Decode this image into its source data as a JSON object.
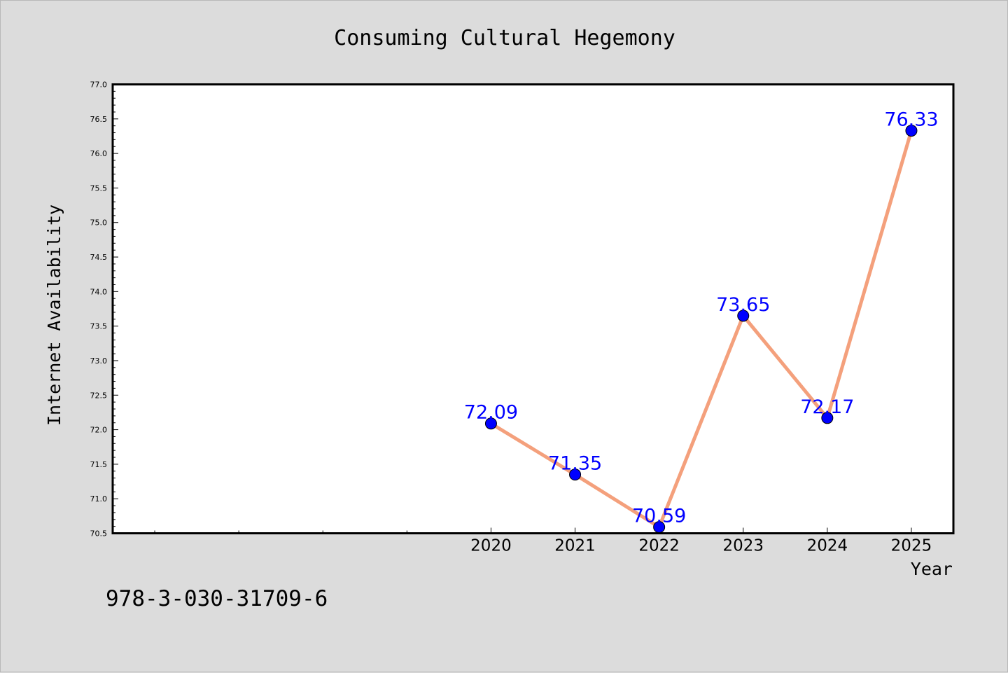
{
  "chart_data": {
    "type": "line",
    "title": "Consuming Cultural Hegemony",
    "xlabel": "Year",
    "ylabel": "Internet Availability",
    "x": [
      2020,
      2021,
      2022,
      2023,
      2024,
      2025
    ],
    "x_tick_labels": [
      "2020",
      "2021",
      "2022",
      "2023",
      "2024",
      "2025"
    ],
    "xlim": [
      2015.5,
      2025.5
    ],
    "ylim": [
      70.5,
      77.0
    ],
    "y_ticks": [
      "70.5",
      "71.0",
      "71.5",
      "72.0",
      "72.5",
      "73.0",
      "73.5",
      "74.0",
      "74.5",
      "75.0",
      "75.5",
      "76.0",
      "76.5",
      "77.0"
    ],
    "series": [
      {
        "values": [
          72.09,
          71.35,
          70.59,
          73.65,
          72.17,
          76.33
        ],
        "labels": [
          "72.09",
          "71.35",
          "70.59",
          "73.65",
          "72.17",
          "76.33"
        ],
        "line_color": "#f4a07c",
        "marker_color": "#0000ff"
      }
    ],
    "grid": false,
    "legend": "none"
  },
  "footer": {
    "code": "978-3-030-31709-6"
  }
}
